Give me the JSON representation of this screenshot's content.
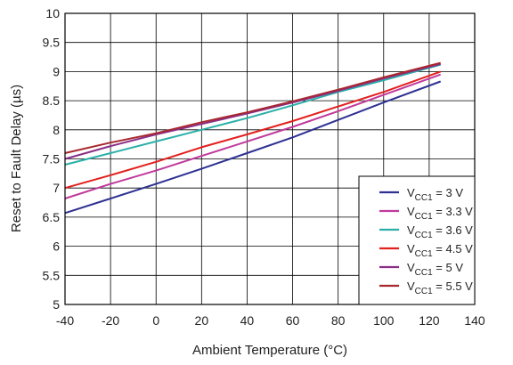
{
  "chart_data": {
    "type": "line",
    "xlabel": "Ambient Temperature (°C)",
    "ylabel": "Reset to Fault Delay (µs)",
    "xlim": [
      -40,
      140
    ],
    "ylim": [
      5,
      10
    ],
    "xticks": [
      "-40",
      "-20",
      "0",
      "20",
      "40",
      "60",
      "80",
      "100",
      "120",
      "140"
    ],
    "yticks": [
      "5",
      "5.5",
      "6",
      "6.5",
      "7",
      "7.5",
      "8",
      "8.5",
      "9",
      "9.5",
      "10"
    ],
    "grid": true,
    "legend_position": "bottom-right",
    "series": [
      {
        "name": "VCC1 = 3 V",
        "label_main": "V",
        "label_sub": "CC1",
        "label_rest": " = 3 V",
        "color": "#2e3192",
        "x": [
          -40,
          -20,
          0,
          20,
          40,
          60,
          80,
          100,
          125
        ],
        "y": [
          6.57,
          6.82,
          7.07,
          7.33,
          7.6,
          7.87,
          8.17,
          8.47,
          8.83
        ]
      },
      {
        "name": "VCC1 = 3.3 V",
        "label_main": "V",
        "label_sub": "CC1",
        "label_rest": " = 3.3 V",
        "color": "#c0399b",
        "x": [
          -40,
          -20,
          0,
          20,
          40,
          60,
          80,
          100,
          125
        ],
        "y": [
          6.82,
          7.07,
          7.3,
          7.55,
          7.8,
          8.05,
          8.32,
          8.6,
          8.95
        ]
      },
      {
        "name": "VCC1 = 3.6 V",
        "label_main": "V",
        "label_sub": "CC1",
        "label_rest": " = 3.6 V",
        "color": "#2bb0a8",
        "x": [
          -40,
          -20,
          0,
          20,
          40,
          60,
          80,
          100,
          125
        ],
        "y": [
          7.4,
          7.6,
          7.8,
          8.0,
          8.2,
          8.42,
          8.65,
          8.85,
          9.12
        ]
      },
      {
        "name": "VCC1 = 4.5 V",
        "label_main": "V",
        "label_sub": "CC1",
        "label_rest": " = 4.5 V",
        "color": "#e2201e",
        "x": [
          -40,
          -20,
          0,
          20,
          40,
          60,
          80,
          100,
          125
        ],
        "y": [
          7.0,
          7.22,
          7.45,
          7.7,
          7.92,
          8.15,
          8.4,
          8.65,
          9.0
        ]
      },
      {
        "name": "VCC1 = 5 V",
        "label_main": "V",
        "label_sub": "CC1",
        "label_rest": " = 5 V",
        "color": "#8a2f86",
        "x": [
          -40,
          -20,
          0,
          20,
          40,
          60,
          80,
          100,
          125
        ],
        "y": [
          7.5,
          7.72,
          7.92,
          8.1,
          8.28,
          8.47,
          8.67,
          8.88,
          9.13
        ]
      },
      {
        "name": "VCC1 = 5.5 V",
        "label_main": "V",
        "label_sub": "CC1",
        "label_rest": " = 5.5 V",
        "color": "#a8282e",
        "x": [
          -40,
          -20,
          0,
          20,
          40,
          60,
          80,
          100,
          125
        ],
        "y": [
          7.6,
          7.78,
          7.94,
          8.13,
          8.3,
          8.49,
          8.69,
          8.9,
          9.15
        ]
      }
    ]
  }
}
